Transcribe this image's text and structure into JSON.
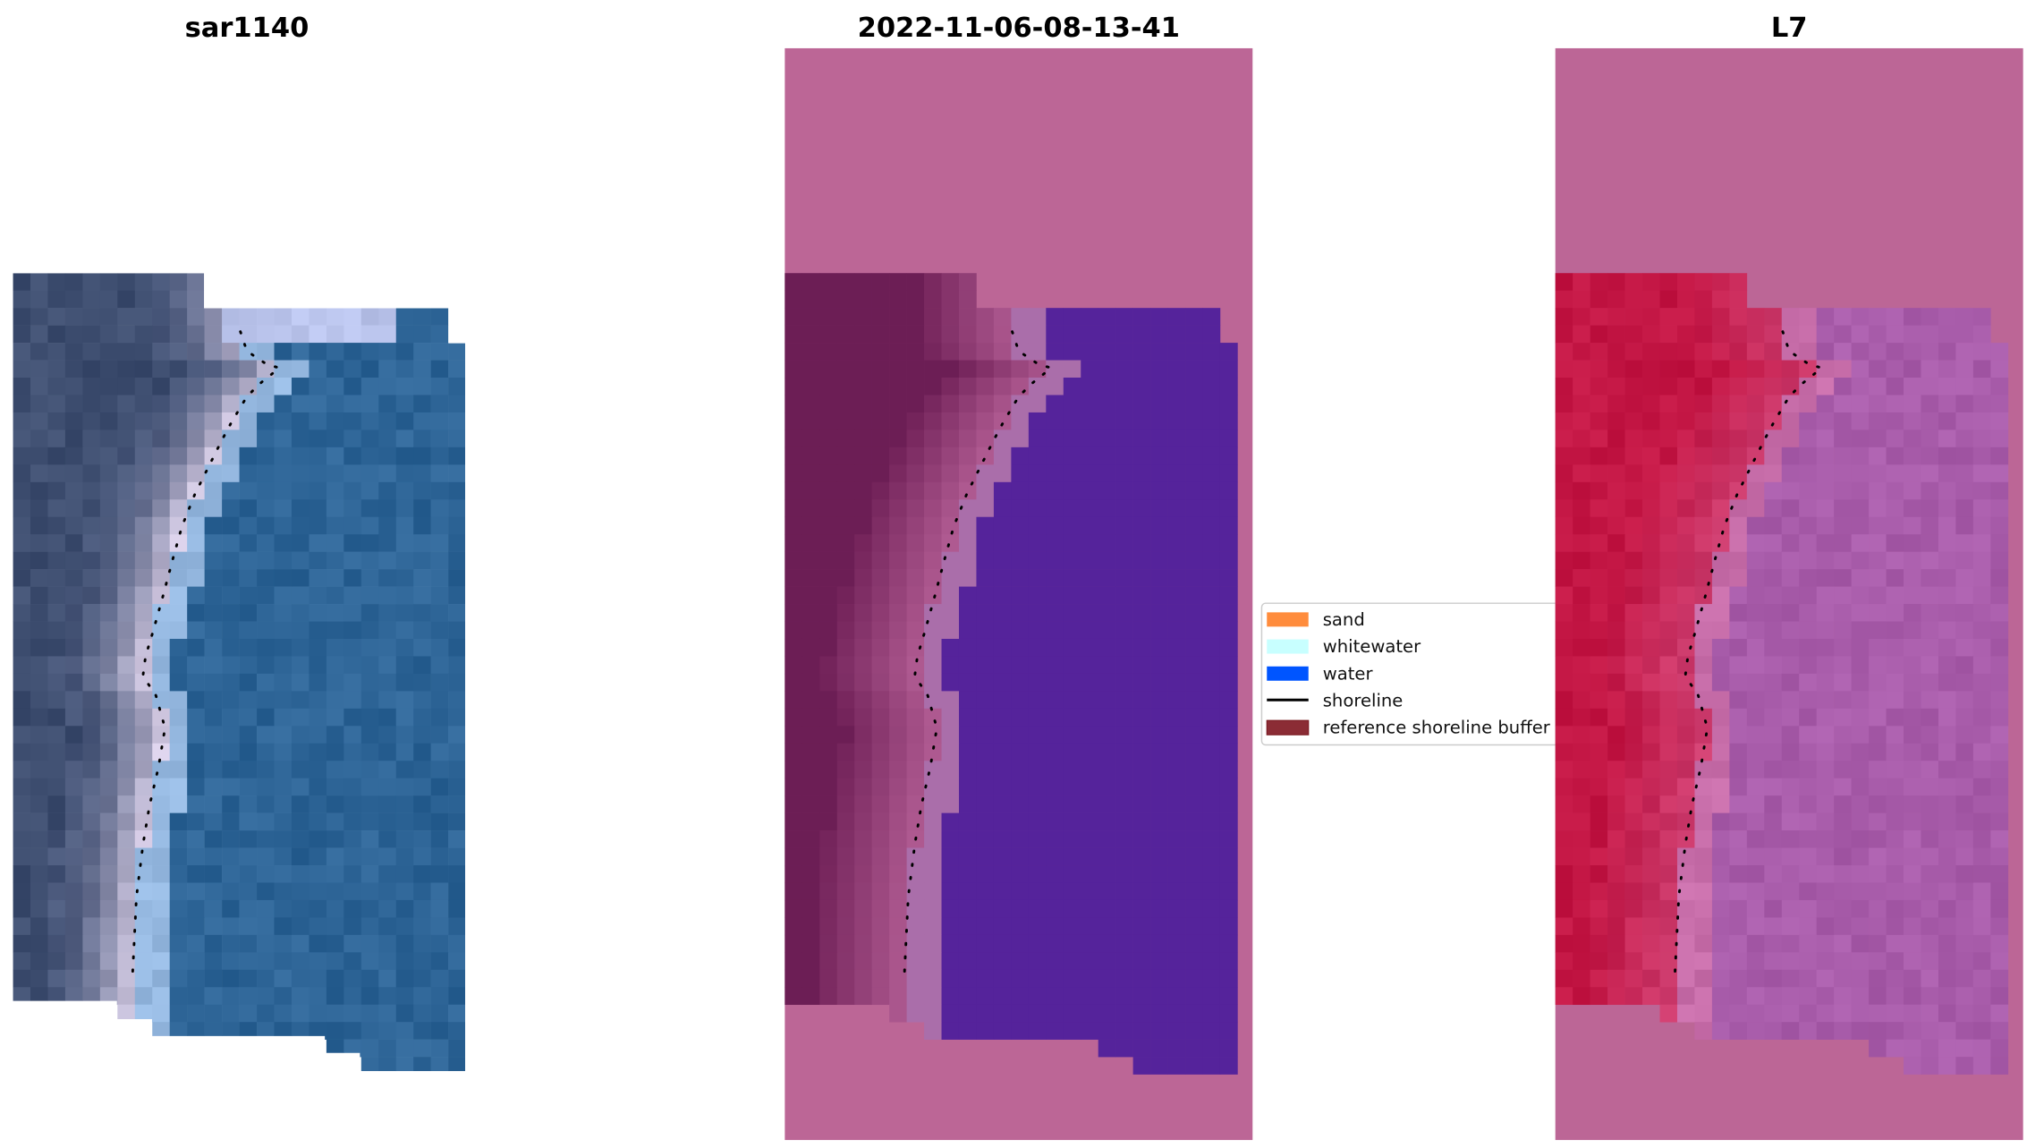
{
  "panels": [
    {
      "title": "sar1140",
      "kind": "rgb"
    },
    {
      "title": "2022-11-06-08-13-41",
      "kind": "classified"
    },
    {
      "title": "L7",
      "kind": "index"
    }
  ],
  "legend": {
    "items": [
      {
        "label": "sand",
        "color": "#ff8c3c",
        "type": "patch"
      },
      {
        "label": "whitewater",
        "color": "#c8ffff",
        "type": "patch"
      },
      {
        "label": "water",
        "color": "#0055ff",
        "type": "patch"
      },
      {
        "label": "shoreline",
        "color": "#000000",
        "type": "line"
      },
      {
        "label": "reference shoreline buffer",
        "color": "#8b2c35",
        "type": "patch"
      }
    ]
  },
  "colors": {
    "background_pink": "#bc6696",
    "water_class": "#55239a",
    "buffer_red": "#bb3340",
    "index_land": "#c0174a"
  }
}
